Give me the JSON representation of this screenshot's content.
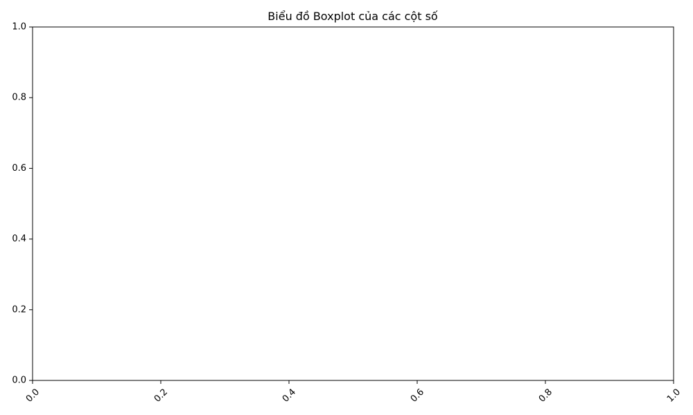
{
  "chart_data": {
    "type": "box",
    "title": "Biểu đồ Boxplot của các cột số",
    "xlabel": "",
    "ylabel": "",
    "xlim": [
      0,
      1
    ],
    "ylim": [
      0,
      1
    ],
    "xticks": [
      "0.0",
      "0.2",
      "0.4",
      "0.6",
      "0.8",
      "1.0"
    ],
    "yticks": [
      "0.0",
      "0.2",
      "0.4",
      "0.6",
      "0.8",
      "1.0"
    ],
    "xtick_rotation_deg": 45,
    "grid": false,
    "series": []
  },
  "colors": {
    "axis": "#000000",
    "background": "#ffffff"
  }
}
